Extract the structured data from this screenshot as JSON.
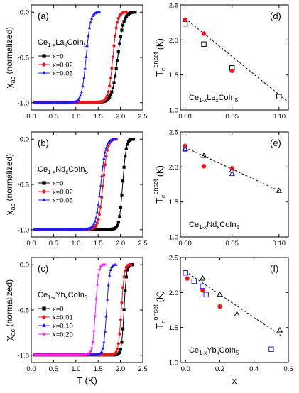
{
  "chart_data": [
    {
      "panel": "(a)",
      "type": "scatter",
      "label_main": "Ce",
      "label_parts": [
        [
          "1-x",
          "sub"
        ],
        [
          "La",
          "n"
        ],
        [
          "x",
          "sub"
        ],
        [
          "CoIn",
          "n"
        ],
        [
          "5",
          "sub"
        ]
      ],
      "ylabel_main": "χ",
      "ylabel_sub": "ac",
      "ylabel_rest": " (normalized)",
      "xlabel": "",
      "xlim": [
        0,
        2.5
      ],
      "ylim": [
        -1.08,
        0.08
      ],
      "xticks": [
        "0.0",
        "0.5",
        "1.0",
        "1.5",
        "2.0",
        "2.5"
      ],
      "yticks": [
        "-1.0",
        "-0.5",
        "0.0"
      ],
      "series": [
        {
          "name": "x=0",
          "color": "#000000",
          "marker": "square",
          "Tc": 2.3,
          "width": 0.12
        },
        {
          "name": "x=0.02",
          "color": "#e8191c",
          "marker": "circle",
          "Tc": 2.1,
          "width": 0.09
        },
        {
          "name": "x=0.05",
          "color": "#1a1aff",
          "marker": "triangle-up",
          "Tc": 1.5,
          "width": 0.09
        }
      ]
    },
    {
      "panel": "(b)",
      "type": "scatter",
      "label_main": "Ce",
      "label_parts": [
        [
          "1-x",
          "sub"
        ],
        [
          "Nd",
          "n"
        ],
        [
          "x",
          "sub"
        ],
        [
          "CoIn",
          "n"
        ],
        [
          "5",
          "sub"
        ]
      ],
      "ylabel_main": "χ",
      "ylabel_sub": "ac",
      "ylabel_rest": " (normalized)",
      "xlabel": "",
      "xlim": [
        0,
        2.5
      ],
      "ylim": [
        -1.08,
        0.08
      ],
      "xticks": [
        "0.0",
        "0.5",
        "1.0",
        "1.5",
        "2.0",
        "2.5"
      ],
      "yticks": [
        "-1.0",
        "-0.5",
        "0.0"
      ],
      "series": [
        {
          "name": "x=0",
          "color": "#000000",
          "marker": "square",
          "Tc": 2.26,
          "width": 0.07
        },
        {
          "name": "x=0.02",
          "color": "#e8191c",
          "marker": "circle",
          "Tc": 1.88,
          "width": 0.09
        },
        {
          "name": "x=0.05",
          "color": "#1a1aff",
          "marker": "triangle-up",
          "Tc": 1.86,
          "width": 0.1
        }
      ]
    },
    {
      "panel": "(c)",
      "type": "scatter",
      "label_main": "Ce",
      "label_parts": [
        [
          "1-x",
          "sub"
        ],
        [
          "Yb",
          "n"
        ],
        [
          "x",
          "sub"
        ],
        [
          "CoIn",
          "n"
        ],
        [
          "5",
          "sub"
        ]
      ],
      "ylabel_main": "χ",
      "ylabel_sub": "ac",
      "ylabel_rest": " (normalized)",
      "xlabel": "T (K)",
      "xlim": [
        0,
        2.5
      ],
      "ylim": [
        -1.08,
        0.08
      ],
      "xticks": [
        "0.0",
        "0.5",
        "1.0",
        "1.5",
        "2.0",
        "2.5"
      ],
      "yticks": [
        "-1.0",
        "-0.5",
        "0.0"
      ],
      "series": [
        {
          "name": "x=0",
          "color": "#000000",
          "marker": "square",
          "Tc": 2.23,
          "width": 0.05
        },
        {
          "name": "x=0.01",
          "color": "#e8191c",
          "marker": "circle",
          "Tc": 2.2,
          "width": 0.06
        },
        {
          "name": "x=0.10",
          "color": "#1a1aff",
          "marker": "triangle-up",
          "Tc": 1.87,
          "width": 0.06
        },
        {
          "name": "x=0.20",
          "color": "#ff1aff",
          "marker": "triangle-down",
          "Tc": 1.62,
          "width": 0.06
        }
      ]
    },
    {
      "panel": "(d)",
      "type": "scatter",
      "label_main": "Ce",
      "label_parts": [
        [
          "1-x",
          "sub"
        ],
        [
          "La",
          "n"
        ],
        [
          "x",
          "sub"
        ],
        [
          "CoIn",
          "n"
        ],
        [
          "5",
          "sub"
        ]
      ],
      "ylabel_main": "T",
      "ylabel_sub": "c",
      "ylabel_sup": "onset",
      "ylabel_rest": " (K)",
      "xlabel": "",
      "xlim": [
        -0.005,
        0.11
      ],
      "ylim": [
        1.0,
        2.5
      ],
      "xticks": [
        [
          "0.00",
          0.0
        ],
        [
          "0.05",
          0.05
        ],
        [
          "0.10",
          0.1
        ]
      ],
      "yticks": [
        [
          "1.0",
          1.0
        ],
        [
          "1.5",
          1.5
        ],
        [
          "2.0",
          2.0
        ],
        [
          "2.5",
          2.5
        ]
      ],
      "fit_line": [
        [
          0.0,
          2.31
        ],
        [
          0.11,
          1.11
        ]
      ],
      "series": [
        {
          "marker": "open-square",
          "color": "#000000",
          "x": [
            0.0,
            0.02,
            0.05,
            0.1
          ],
          "y": [
            2.23,
            1.94,
            1.6,
            1.19
          ]
        },
        {
          "marker": "circle",
          "color": "#e8191c",
          "x": [
            0.0,
            0.02,
            0.05
          ],
          "y": [
            2.29,
            2.09,
            1.56
          ]
        }
      ]
    },
    {
      "panel": "(e)",
      "type": "scatter",
      "label_main": "Ce",
      "label_parts": [
        [
          "1-x",
          "sub"
        ],
        [
          "Nd",
          "n"
        ],
        [
          "x",
          "sub"
        ],
        [
          "CoIn",
          "n"
        ],
        [
          "5",
          "sub"
        ]
      ],
      "ylabel_main": "T",
      "ylabel_sub": "c",
      "ylabel_sup": "onset",
      "ylabel_rest": " (K)",
      "xlabel": "",
      "xlim": [
        -0.005,
        0.11
      ],
      "ylim": [
        1.0,
        2.5
      ],
      "xticks": [
        [
          "0.00",
          0.0
        ],
        [
          "0.05",
          0.05
        ],
        [
          "0.10",
          0.1
        ]
      ],
      "yticks": [
        [
          "1.0",
          1.0
        ],
        [
          "1.5",
          1.5
        ],
        [
          "2.0",
          2.0
        ],
        [
          "2.5",
          2.5
        ]
      ],
      "fit_line": [
        [
          0.0,
          2.28
        ],
        [
          0.1,
          1.66
        ]
      ],
      "series": [
        {
          "marker": "open-triangle-up",
          "color": "#000000",
          "x": [
            0.0,
            0.02,
            0.05,
            0.1
          ],
          "y": [
            2.26,
            2.16,
            1.95,
            1.66
          ]
        },
        {
          "marker": "circle",
          "color": "#e8191c",
          "x": [
            0.0,
            0.02,
            0.05
          ],
          "y": [
            2.3,
            2.01,
            1.98
          ]
        },
        {
          "marker": "open-triangle-up",
          "color": "#1a1aff",
          "x": [
            0.0,
            0.05
          ],
          "y": [
            2.25,
            1.9
          ]
        }
      ]
    },
    {
      "panel": "(f)",
      "type": "scatter",
      "label_main": "Ce",
      "label_parts": [
        [
          "1-x",
          "sub"
        ],
        [
          "Yb",
          "n"
        ],
        [
          "x",
          "sub"
        ],
        [
          "CoIn",
          "n"
        ],
        [
          "5",
          "sub"
        ]
      ],
      "ylabel_main": "T",
      "ylabel_sub": "c",
      "ylabel_sup": "onset",
      "ylabel_rest": " (K)",
      "xlabel": "x",
      "xlim": [
        -0.03,
        0.6
      ],
      "ylim": [
        1.0,
        2.5
      ],
      "xticks": [
        [
          "0.0",
          0.0
        ],
        [
          "0.2",
          0.2
        ],
        [
          "0.4",
          0.4
        ],
        [
          "0.6",
          0.6
        ]
      ],
      "yticks": [
        [
          "1.0",
          1.0
        ],
        [
          "1.5",
          1.5
        ],
        [
          "2.0",
          2.0
        ],
        [
          "2.5",
          2.5
        ]
      ],
      "fit_line": [
        [
          0.0,
          2.3
        ],
        [
          0.56,
          1.38
        ]
      ],
      "series": [
        {
          "marker": "open-triangle-up",
          "color": "#000000",
          "x": [
            0.0,
            0.1,
            0.2,
            0.3,
            0.55
          ],
          "y": [
            2.28,
            2.2,
            1.97,
            1.69,
            1.46
          ]
        },
        {
          "marker": "circle",
          "color": "#e8191c",
          "x": [
            0.0,
            0.01,
            0.1,
            0.2
          ],
          "y": [
            2.28,
            2.2,
            2.03,
            1.8
          ]
        },
        {
          "marker": "open-square",
          "color": "#1a1aff",
          "x": [
            0.0,
            0.05,
            0.1,
            0.12,
            0.5
          ],
          "y": [
            2.28,
            2.16,
            2.09,
            1.97,
            1.19
          ]
        }
      ]
    }
  ]
}
